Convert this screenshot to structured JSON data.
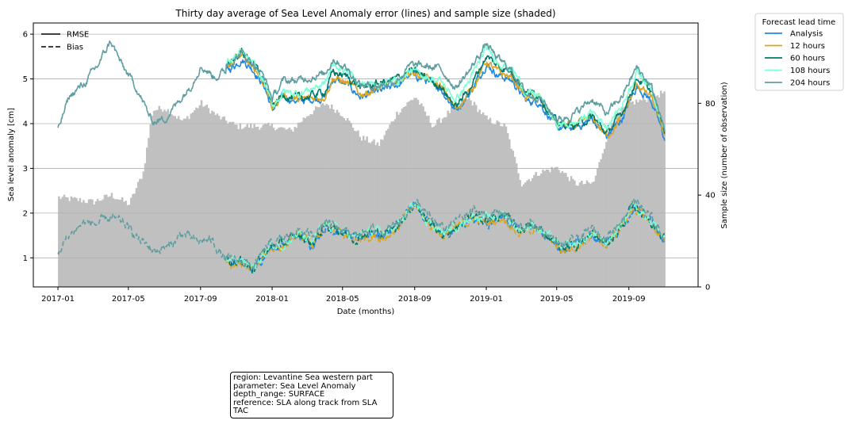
{
  "chart_data": {
    "type": "line",
    "title": "Thirty day average of Sea Level Anomaly error (lines) and sample size (shaded)",
    "xlabel": "Date (months)",
    "ylabel": "Sea level anomaly [cm]",
    "y2label": "Sample size (number of observation)",
    "xlim": [
      "2016-11-20",
      "2019-12-28"
    ],
    "ylim": [
      0.35,
      6.25
    ],
    "y2lim": [
      0,
      115
    ],
    "x_ticks": [
      "2017-01",
      "2017-05",
      "2017-09",
      "2018-01",
      "2018-05",
      "2018-09",
      "2019-01",
      "2019-05",
      "2019-09"
    ],
    "y_ticks": [
      "1",
      "2",
      "3",
      "4",
      "5",
      "6"
    ],
    "y2_ticks": [
      "0",
      "40",
      "80"
    ],
    "grid": "horizontal",
    "style_legend": {
      "placement": "upper-left",
      "entries": [
        {
          "label": "RMSE",
          "dash": "solid"
        },
        {
          "label": "Bias",
          "dash": "dashed"
        }
      ]
    },
    "legend": {
      "title": "Forecast lead time",
      "placement": "outside-right",
      "entries": [
        {
          "label": "Analysis",
          "color": "#1e88e5"
        },
        {
          "label": "12 hours",
          "color": "#daa520"
        },
        {
          "label": "60 hours",
          "color": "#00796b"
        },
        {
          "label": "108 hours",
          "color": "#7fffd4"
        },
        {
          "label": "204 hours",
          "color": "#5f9ea0"
        }
      ]
    },
    "sample_size_color": "#c0c0c0",
    "sample_size": [
      [
        "2017-01-01",
        39
      ],
      [
        "2017-02-01",
        38
      ],
      [
        "2017-03-01",
        37
      ],
      [
        "2017-04-01",
        40
      ],
      [
        "2017-05-01",
        36
      ],
      [
        "2017-05-25",
        50
      ],
      [
        "2017-06-10",
        77
      ],
      [
        "2017-07-01",
        78
      ],
      [
        "2017-08-01",
        72
      ],
      [
        "2017-09-01",
        80
      ],
      [
        "2017-10-01",
        74
      ],
      [
        "2017-11-01",
        70
      ],
      [
        "2017-12-01",
        70
      ],
      [
        "2018-01-01",
        70
      ],
      [
        "2018-02-01",
        68
      ],
      [
        "2018-03-01",
        75
      ],
      [
        "2018-04-01",
        80
      ],
      [
        "2018-05-01",
        75
      ],
      [
        "2018-06-01",
        65
      ],
      [
        "2018-07-01",
        62
      ],
      [
        "2018-08-01",
        76
      ],
      [
        "2018-09-01",
        83
      ],
      [
        "2018-10-01",
        70
      ],
      [
        "2018-11-01",
        77
      ],
      [
        "2018-12-01",
        82
      ],
      [
        "2019-01-01",
        73
      ],
      [
        "2019-02-01",
        70
      ],
      [
        "2019-03-01",
        45
      ],
      [
        "2019-04-01",
        50
      ],
      [
        "2019-05-01",
        52
      ],
      [
        "2019-06-01",
        45
      ],
      [
        "2019-07-01",
        45
      ],
      [
        "2019-08-01",
        72
      ],
      [
        "2019-09-01",
        80
      ],
      [
        "2019-10-01",
        82
      ],
      [
        "2019-11-01",
        85
      ]
    ],
    "rmse_base": [
      [
        "2017-01-01",
        3.85
      ],
      [
        "2017-01-20",
        4.6
      ],
      [
        "2017-02-15",
        4.9
      ],
      [
        "2017-03-10",
        5.3
      ],
      [
        "2017-04-01",
        5.85
      ],
      [
        "2017-04-20",
        5.3
      ],
      [
        "2017-05-15",
        4.8
      ],
      [
        "2017-06-10",
        4.05
      ],
      [
        "2017-07-01",
        4.1
      ],
      [
        "2017-07-20",
        4.4
      ],
      [
        "2017-08-15",
        4.85
      ],
      [
        "2017-09-01",
        5.3
      ],
      [
        "2017-09-25",
        5.05
      ],
      [
        "2017-10-20",
        5.2
      ],
      [
        "2017-11-10",
        5.45
      ],
      [
        "2017-12-01",
        5.2
      ],
      [
        "2017-12-20",
        4.8
      ],
      [
        "2018-01-01",
        4.3
      ],
      [
        "2018-01-20",
        4.6
      ],
      [
        "2018-02-15",
        4.5
      ],
      [
        "2018-03-10",
        4.55
      ],
      [
        "2018-04-01",
        4.6
      ],
      [
        "2018-04-15",
        5.0
      ],
      [
        "2018-05-10",
        4.85
      ],
      [
        "2018-06-01",
        4.6
      ],
      [
        "2018-07-01",
        4.7
      ],
      [
        "2018-08-01",
        4.85
      ],
      [
        "2018-08-25",
        5.1
      ],
      [
        "2018-09-15",
        5.0
      ],
      [
        "2018-10-15",
        4.8
      ],
      [
        "2018-11-10",
        4.3
      ],
      [
        "2018-12-05",
        4.7
      ],
      [
        "2019-01-01",
        5.35
      ],
      [
        "2019-01-20",
        5.1
      ],
      [
        "2019-02-15",
        4.95
      ],
      [
        "2019-03-10",
        4.5
      ],
      [
        "2019-04-01",
        4.5
      ],
      [
        "2019-05-01",
        3.9
      ],
      [
        "2019-06-01",
        3.9
      ],
      [
        "2019-07-01",
        4.1
      ],
      [
        "2019-07-25",
        3.7
      ],
      [
        "2019-08-20",
        4.1
      ],
      [
        "2019-09-15",
        4.85
      ],
      [
        "2019-10-10",
        4.5
      ],
      [
        "2019-11-01",
        3.65
      ]
    ],
    "bias_base": [
      [
        "2017-01-01",
        1.1
      ],
      [
        "2017-01-20",
        1.5
      ],
      [
        "2017-02-15",
        1.8
      ],
      [
        "2017-03-10",
        1.75
      ],
      [
        "2017-04-01",
        1.9
      ],
      [
        "2017-04-25",
        1.75
      ],
      [
        "2017-05-20",
        1.4
      ],
      [
        "2017-06-15",
        1.15
      ],
      [
        "2017-07-10",
        1.25
      ],
      [
        "2017-08-01",
        1.55
      ],
      [
        "2017-08-25",
        1.35
      ],
      [
        "2017-09-20",
        1.4
      ],
      [
        "2017-10-15",
        0.9
      ],
      [
        "2017-11-10",
        0.9
      ],
      [
        "2017-12-01",
        0.75
      ],
      [
        "2017-12-25",
        1.2
      ],
      [
        "2018-01-20",
        1.3
      ],
      [
        "2018-02-15",
        1.5
      ],
      [
        "2018-03-10",
        1.3
      ],
      [
        "2018-04-01",
        1.7
      ],
      [
        "2018-04-25",
        1.6
      ],
      [
        "2018-05-20",
        1.4
      ],
      [
        "2018-06-15",
        1.55
      ],
      [
        "2018-07-10",
        1.5
      ],
      [
        "2018-08-05",
        1.75
      ],
      [
        "2018-09-01",
        2.2
      ],
      [
        "2018-09-25",
        1.8
      ],
      [
        "2018-10-20",
        1.5
      ],
      [
        "2018-11-15",
        1.7
      ],
      [
        "2018-12-10",
        1.9
      ],
      [
        "2019-01-05",
        1.8
      ],
      [
        "2019-01-30",
        1.95
      ],
      [
        "2019-02-25",
        1.6
      ],
      [
        "2019-03-20",
        1.7
      ],
      [
        "2019-04-15",
        1.5
      ],
      [
        "2019-05-10",
        1.2
      ],
      [
        "2019-06-05",
        1.3
      ],
      [
        "2019-07-01",
        1.5
      ],
      [
        "2019-07-25",
        1.3
      ],
      [
        "2019-08-20",
        1.7
      ],
      [
        "2019-09-10",
        2.15
      ],
      [
        "2019-10-05",
        1.85
      ],
      [
        "2019-11-01",
        1.4
      ]
    ],
    "forecast_start": "2017-10-15",
    "lead_offsets_rmse": [
      0,
      0.05,
      0.13,
      0.2,
      0.32
    ],
    "lead_offsets_bias": [
      0,
      -0.03,
      0.02,
      0.04,
      0.1
    ]
  },
  "info_box": {
    "lines": [
      "region: Levantine Sea western part",
      "parameter: Sea Level Anomaly",
      "depth_range: SURFACE",
      "reference: SLA along track from SLA TAC"
    ]
  }
}
